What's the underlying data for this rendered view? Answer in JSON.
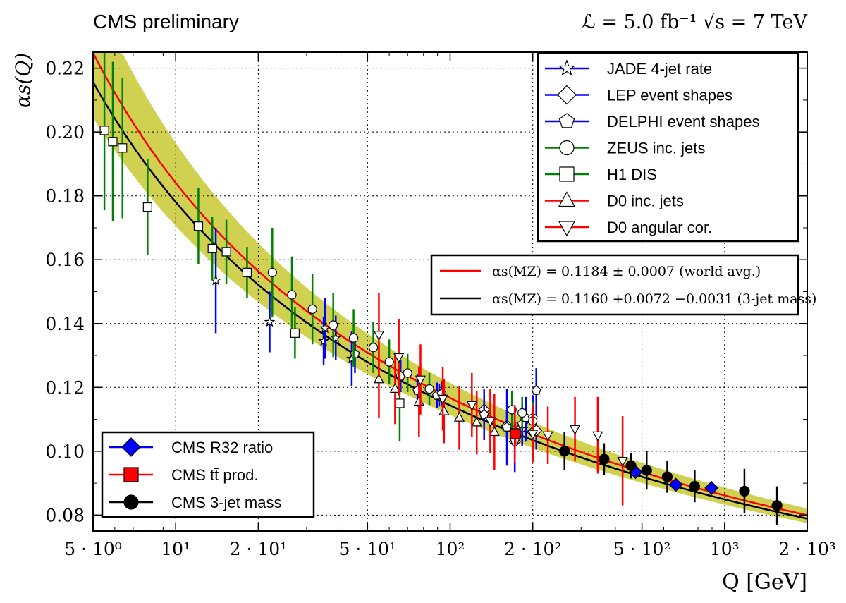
{
  "chart_data": {
    "type": "scatter",
    "title": "CMS preliminary",
    "subtitle": "ℒ = 5.0 fb⁻¹  √s = 7 TeV",
    "xlabel": "Q [GeV]",
    "ylabel": "αs(Q)",
    "xscale": "log",
    "xlim": [
      5,
      2000
    ],
    "ylim": [
      0.075,
      0.225
    ],
    "grid": true,
    "x_ticks": [
      {
        "value": 5,
        "label": "5 · 10⁰"
      },
      {
        "value": 10,
        "label": "10¹"
      },
      {
        "value": 20,
        "label": "2 · 10¹"
      },
      {
        "value": 50,
        "label": "5 · 10¹"
      },
      {
        "value": 100,
        "label": "10²"
      },
      {
        "value": 200,
        "label": "2 · 10²"
      },
      {
        "value": 500,
        "label": "5 · 10²"
      },
      {
        "value": 1000,
        "label": "10³"
      },
      {
        "value": 2000,
        "label": "2 · 10³"
      }
    ],
    "y_ticks": [
      0.08,
      0.1,
      0.12,
      0.14,
      0.16,
      0.18,
      0.2,
      0.22
    ],
    "legend_main_placement": "top-right",
    "legend_cms_placement": "bottom-left",
    "curves": [
      {
        "name": "αs(MZ) = 0.1184 ± 0.0007 (world avg.)",
        "color": "#ff0000",
        "alpha_mz": 0.1184
      },
      {
        "name": "αs(MZ) = 0.1160 +0.0072 −0.0031 (3-jet mass)",
        "color": "#000000",
        "alpha_mz": 0.116
      }
    ],
    "band": {
      "color": "#c8c832",
      "lower_alpha_mz": 0.1129,
      "upper_alpha_mz": 0.1232
    },
    "series": [
      {
        "name": "JADE 4-jet rate",
        "marker": "star",
        "color": "#0000ff",
        "points": [
          {
            "x": 14,
            "y": 0.1535,
            "err": 0.0165
          },
          {
            "x": 22,
            "y": 0.1405,
            "err": 0.0095
          },
          {
            "x": 34.6,
            "y": 0.1345,
            "err": 0.0075
          },
          {
            "x": 35,
            "y": 0.1385,
            "err": 0.0095
          },
          {
            "x": 38.3,
            "y": 0.1355,
            "err": 0.007
          },
          {
            "x": 43.8,
            "y": 0.129,
            "err": 0.0085
          }
        ]
      },
      {
        "name": "LEP event shapes",
        "marker": "diamond",
        "color": "#0000ff",
        "points": [
          {
            "x": 91.2,
            "y": 0.1175,
            "err": 0.0035
          },
          {
            "x": 133,
            "y": 0.113,
            "err": 0.0045
          },
          {
            "x": 161,
            "y": 0.108,
            "err": 0.005
          },
          {
            "x": 172,
            "y": 0.103,
            "err": 0.006
          },
          {
            "x": 183,
            "y": 0.1075,
            "err": 0.006
          },
          {
            "x": 189,
            "y": 0.11,
            "err": 0.007
          },
          {
            "x": 200,
            "y": 0.106,
            "err": 0.005
          },
          {
            "x": 206,
            "y": 0.1065,
            "err": 0.006
          }
        ]
      },
      {
        "name": "DELPHI event shapes",
        "marker": "pentagon",
        "color": "#0000ff",
        "points": [
          {
            "x": 45,
            "y": 0.1305,
            "err": 0.006
          },
          {
            "x": 66,
            "y": 0.1235,
            "err": 0.005
          },
          {
            "x": 76,
            "y": 0.119,
            "err": 0.005
          },
          {
            "x": 89.5,
            "y": 0.1175,
            "err": 0.004
          },
          {
            "x": 93,
            "y": 0.118,
            "err": 0.004
          },
          {
            "x": 133,
            "y": 0.1115,
            "err": 0.008
          },
          {
            "x": 161,
            "y": 0.1075,
            "err": 0.012
          },
          {
            "x": 172,
            "y": 0.1035,
            "err": 0.01
          },
          {
            "x": 183,
            "y": 0.1085,
            "err": 0.006
          },
          {
            "x": 189,
            "y": 0.1105,
            "err": 0.005
          },
          {
            "x": 200,
            "y": 0.1105,
            "err": 0.007
          },
          {
            "x": 206,
            "y": 0.119,
            "err": 0.007
          }
        ]
      },
      {
        "name": "ZEUS inc. jets",
        "marker": "circle",
        "color": "#008000",
        "points": [
          {
            "x": 22.5,
            "y": 0.156,
            "err": 0.014
          },
          {
            "x": 26.5,
            "y": 0.149,
            "err": 0.012
          },
          {
            "x": 31.5,
            "y": 0.1445,
            "err": 0.011
          },
          {
            "x": 37.5,
            "y": 0.1395,
            "err": 0.01
          },
          {
            "x": 44.5,
            "y": 0.1355,
            "err": 0.009
          },
          {
            "x": 52.5,
            "y": 0.1325,
            "err": 0.008
          },
          {
            "x": 60,
            "y": 0.128,
            "err": 0.007
          },
          {
            "x": 70,
            "y": 0.1245,
            "err": 0.006
          },
          {
            "x": 84,
            "y": 0.1195,
            "err": 0.005
          },
          {
            "x": 168,
            "y": 0.113,
            "err": 0.006
          },
          {
            "x": 183,
            "y": 0.112,
            "err": 0.005
          },
          {
            "x": 200,
            "y": 0.1095,
            "err": 0.006
          }
        ]
      },
      {
        "name": "H1 DIS",
        "marker": "square",
        "color": "#008000",
        "points": [
          {
            "x": 5.5,
            "y": 0.2005,
            "err": 0.025
          },
          {
            "x": 5.9,
            "y": 0.197,
            "err": 0.025
          },
          {
            "x": 6.4,
            "y": 0.195,
            "err": 0.022
          },
          {
            "x": 7.9,
            "y": 0.1765,
            "err": 0.015
          },
          {
            "x": 12.1,
            "y": 0.1705,
            "err": 0.012
          },
          {
            "x": 13.6,
            "y": 0.1635,
            "err": 0.01
          },
          {
            "x": 15.3,
            "y": 0.1625,
            "err": 0.01
          },
          {
            "x": 18.2,
            "y": 0.156,
            "err": 0.008
          },
          {
            "x": 27.2,
            "y": 0.137,
            "err": 0.008
          },
          {
            "x": 65.5,
            "y": 0.115,
            "err": 0.012
          }
        ]
      },
      {
        "name": "D0 inc. jets",
        "marker": "triangle-up",
        "color": "#ff0000",
        "points": [
          {
            "x": 55,
            "y": 0.1225,
            "err": 0.012
          },
          {
            "x": 63,
            "y": 0.1195,
            "err": 0.011
          },
          {
            "x": 77,
            "y": 0.1155,
            "err": 0.011
          },
          {
            "x": 95,
            "y": 0.1125,
            "err": 0.01
          },
          {
            "x": 108,
            "y": 0.1105,
            "err": 0.01
          },
          {
            "x": 125,
            "y": 0.109,
            "err": 0.01
          },
          {
            "x": 145,
            "y": 0.106,
            "err": 0.012
          }
        ]
      },
      {
        "name": "D0 angular cor.",
        "marker": "triangle-down",
        "color": "#ff0000",
        "points": [
          {
            "x": 55,
            "y": 0.1365,
            "err": 0.013
          },
          {
            "x": 65,
            "y": 0.1295,
            "err": 0.012
          },
          {
            "x": 78,
            "y": 0.1225,
            "err": 0.011
          },
          {
            "x": 94,
            "y": 0.1165,
            "err": 0.01
          },
          {
            "x": 120,
            "y": 0.1145,
            "err": 0.01
          },
          {
            "x": 140,
            "y": 0.1095,
            "err": 0.01
          },
          {
            "x": 172,
            "y": 0.1055,
            "err": 0.009
          },
          {
            "x": 200,
            "y": 0.1055,
            "err": 0.009
          },
          {
            "x": 227,
            "y": 0.105,
            "err": 0.009
          },
          {
            "x": 285,
            "y": 0.107,
            "err": 0.01
          },
          {
            "x": 345,
            "y": 0.105,
            "err": 0.012
          },
          {
            "x": 425,
            "y": 0.097,
            "err": 0.014
          }
        ]
      },
      {
        "name": "CMS R32 ratio",
        "marker": "diamond-filled",
        "color": "#0000ff",
        "points": [
          {
            "x": 474,
            "y": 0.0935,
            "err": 0.0
          },
          {
            "x": 664,
            "y": 0.0895,
            "err": 0.0
          },
          {
            "x": 896,
            "y": 0.0885,
            "err": 0.0
          }
        ]
      },
      {
        "name": "CMS tt̄ prod.",
        "marker": "square-filled",
        "color": "#ff0000",
        "points": [
          {
            "x": 173,
            "y": 0.1055,
            "err": 0.0035
          }
        ]
      },
      {
        "name": "CMS 3-jet mass",
        "marker": "circle-filled",
        "color": "#000000",
        "points": [
          {
            "x": 261,
            "y": 0.1,
            "err": 0.006
          },
          {
            "x": 364,
            "y": 0.0975,
            "err": 0.005
          },
          {
            "x": 456,
            "y": 0.0955,
            "err": 0.004
          },
          {
            "x": 520,
            "y": 0.094,
            "err": 0.006
          },
          {
            "x": 618,
            "y": 0.092,
            "err": 0.005
          },
          {
            "x": 778,
            "y": 0.089,
            "err": 0.005
          },
          {
            "x": 1181,
            "y": 0.0875,
            "err": 0.007
          },
          {
            "x": 1552,
            "y": 0.083,
            "err": 0.006
          }
        ]
      }
    ]
  }
}
